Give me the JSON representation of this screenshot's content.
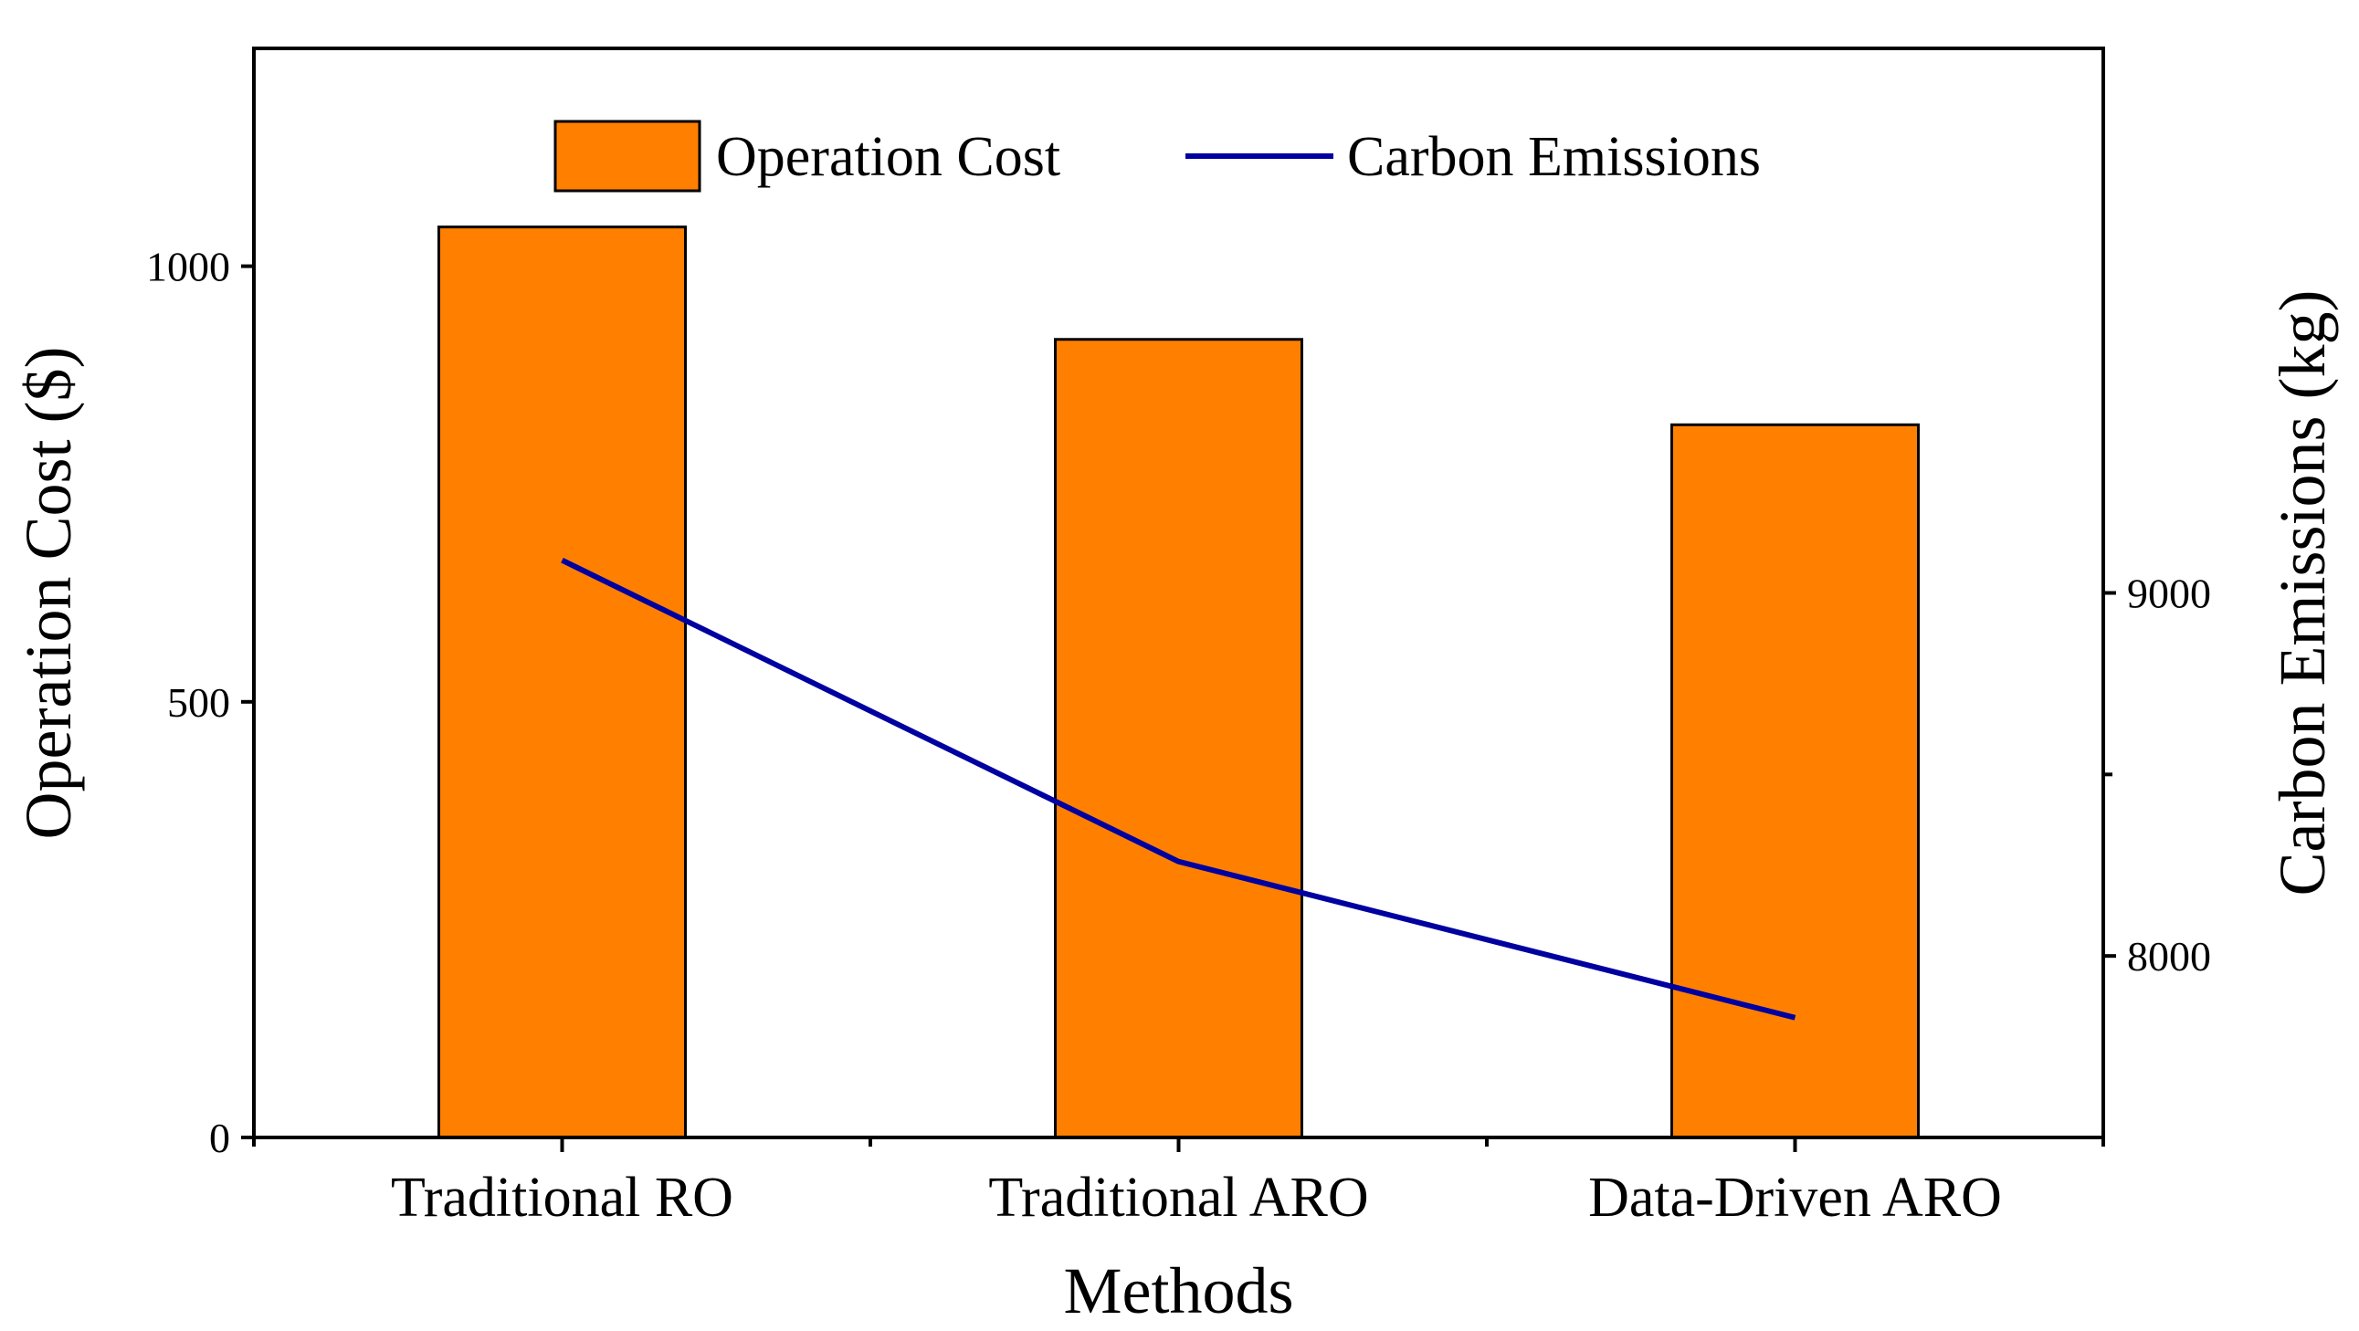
{
  "chart_data": {
    "type": "bar",
    "categories": [
      "Traditional RO",
      "Traditional ARO",
      "Data-Driven ARO"
    ],
    "series": [
      {
        "name": "Operation Cost",
        "kind": "bar",
        "axis": "left",
        "color": "#FF8000",
        "values": [
          1045,
          916,
          818
        ]
      },
      {
        "name": "Carbon Emissions",
        "kind": "line",
        "axis": "right",
        "color": "#0000A0",
        "values": [
          9090,
          8260,
          7830
        ]
      }
    ],
    "xlabel": "Methods",
    "ylabel_left": "Operation Cost ($)",
    "ylabel_right": "Carbon Emissions (kg)",
    "ylim_left": [
      0,
      1250
    ],
    "ylim_right": [
      7500,
      10500
    ],
    "yticks_left": [
      0,
      500,
      1000
    ],
    "yticks_right": [
      8000,
      9000
    ],
    "yticks_right_minor": [
      8500
    ],
    "legend_position": "top-center",
    "grid": false
  }
}
